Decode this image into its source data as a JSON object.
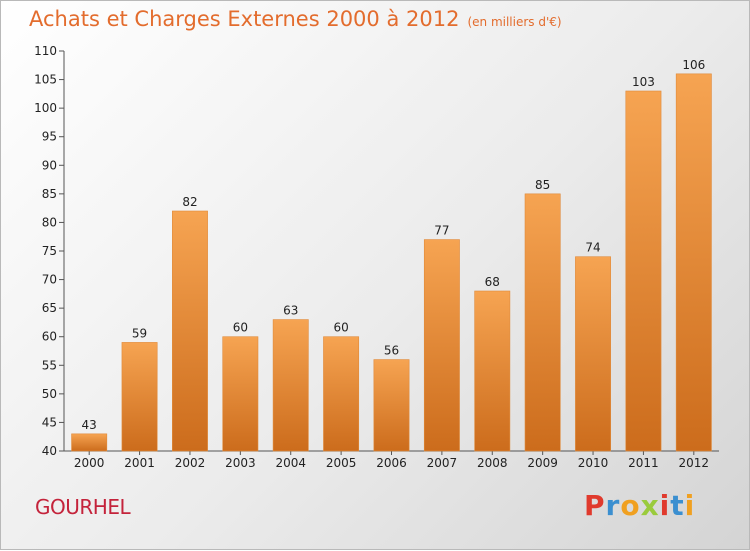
{
  "page": {
    "title": "Achats et Charges Externes 2000 à 2012",
    "subtitle": "(en milliers d'€)",
    "place_name": "GOURHEL",
    "logo_text": "Proxiti"
  },
  "colors": {
    "title": "#e36c2d",
    "place": "#c4233b",
    "bar_top": "#f6a452",
    "bar_bottom": "#cc6c1c",
    "logo": [
      "#e03a2d",
      "#3b8fd0",
      "#f0a020",
      "#9acb3c",
      "#e03a2d",
      "#3b8fd0",
      "#f0a020"
    ]
  },
  "chart_data": {
    "type": "bar",
    "title": "Achats et Charges Externes 2000 à 2012",
    "subtitle": "(en milliers d'€)",
    "xlabel": "",
    "ylabel": "",
    "categories": [
      "2000",
      "2001",
      "2002",
      "2003",
      "2004",
      "2005",
      "2006",
      "2007",
      "2008",
      "2009",
      "2010",
      "2011",
      "2012"
    ],
    "values": [
      43,
      59,
      82,
      60,
      63,
      60,
      56,
      77,
      68,
      85,
      74,
      103,
      106
    ],
    "ylim": [
      40,
      110
    ],
    "yticks": [
      40,
      45,
      50,
      55,
      60,
      65,
      70,
      75,
      80,
      85,
      90,
      95,
      100,
      105,
      110
    ],
    "grid": false,
    "legend": "none"
  }
}
